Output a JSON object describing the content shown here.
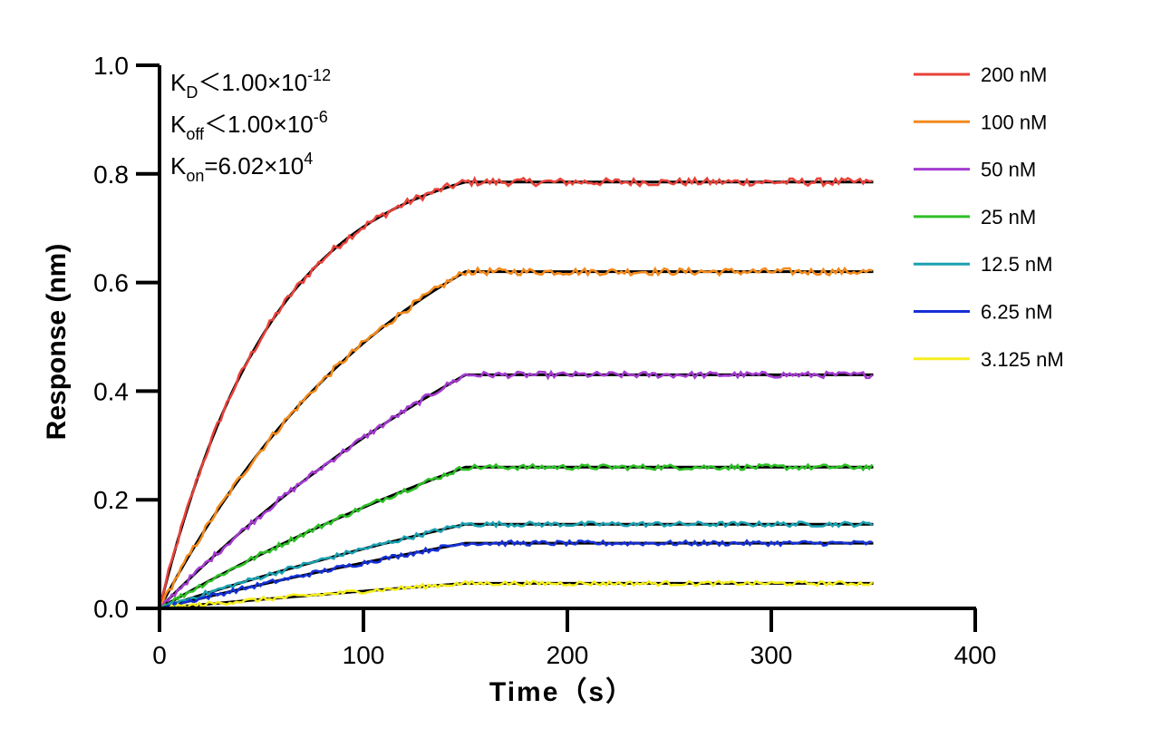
{
  "chart_data": {
    "type": "line",
    "xlabel": "Time（s）",
    "ylabel": "Response (nm)",
    "xlim": [
      0,
      400
    ],
    "ylim": [
      0,
      1.0
    ],
    "xticks": [
      0,
      100,
      200,
      300,
      400
    ],
    "yticks": [
      0.0,
      0.2,
      0.4,
      0.6,
      0.8,
      1.0
    ],
    "xtick_labels": [
      "0",
      "100",
      "200",
      "300",
      "400"
    ],
    "ytick_labels": [
      "0.0",
      "0.2",
      "0.4",
      "0.6",
      "0.8",
      "1.0"
    ],
    "grid": false,
    "legend_position": "top-right",
    "association_end": 150,
    "run_end": 350,
    "annotations": [
      {
        "main": "K",
        "sub": "D",
        "rest": "＜1.00×10",
        "sup": "-12"
      },
      {
        "main": "K",
        "sub": "off",
        "rest": "＜1.00×10",
        "sup": "-6"
      },
      {
        "main": "K",
        "sub": "on",
        "rest": "=6.02×10",
        "sup": "4"
      }
    ],
    "series": [
      {
        "name": "200 nM",
        "color": "#e8423a",
        "plateau": 0.785
      },
      {
        "name": "100 nM",
        "color": "#f28a1c",
        "plateau": 0.62
      },
      {
        "name": "50 nM",
        "color": "#a43bd0",
        "plateau": 0.43
      },
      {
        "name": "25 nM",
        "color": "#2dbf26",
        "plateau": 0.26
      },
      {
        "name": "12.5 nM",
        "color": "#1aa0b0",
        "plateau": 0.155
      },
      {
        "name": "6.25 nM",
        "color": "#1530d6",
        "plateau": 0.12
      },
      {
        "name": "3.125 nM",
        "color": "#f5ee20",
        "plateau": 0.046
      }
    ],
    "fit_color": "#000000"
  }
}
